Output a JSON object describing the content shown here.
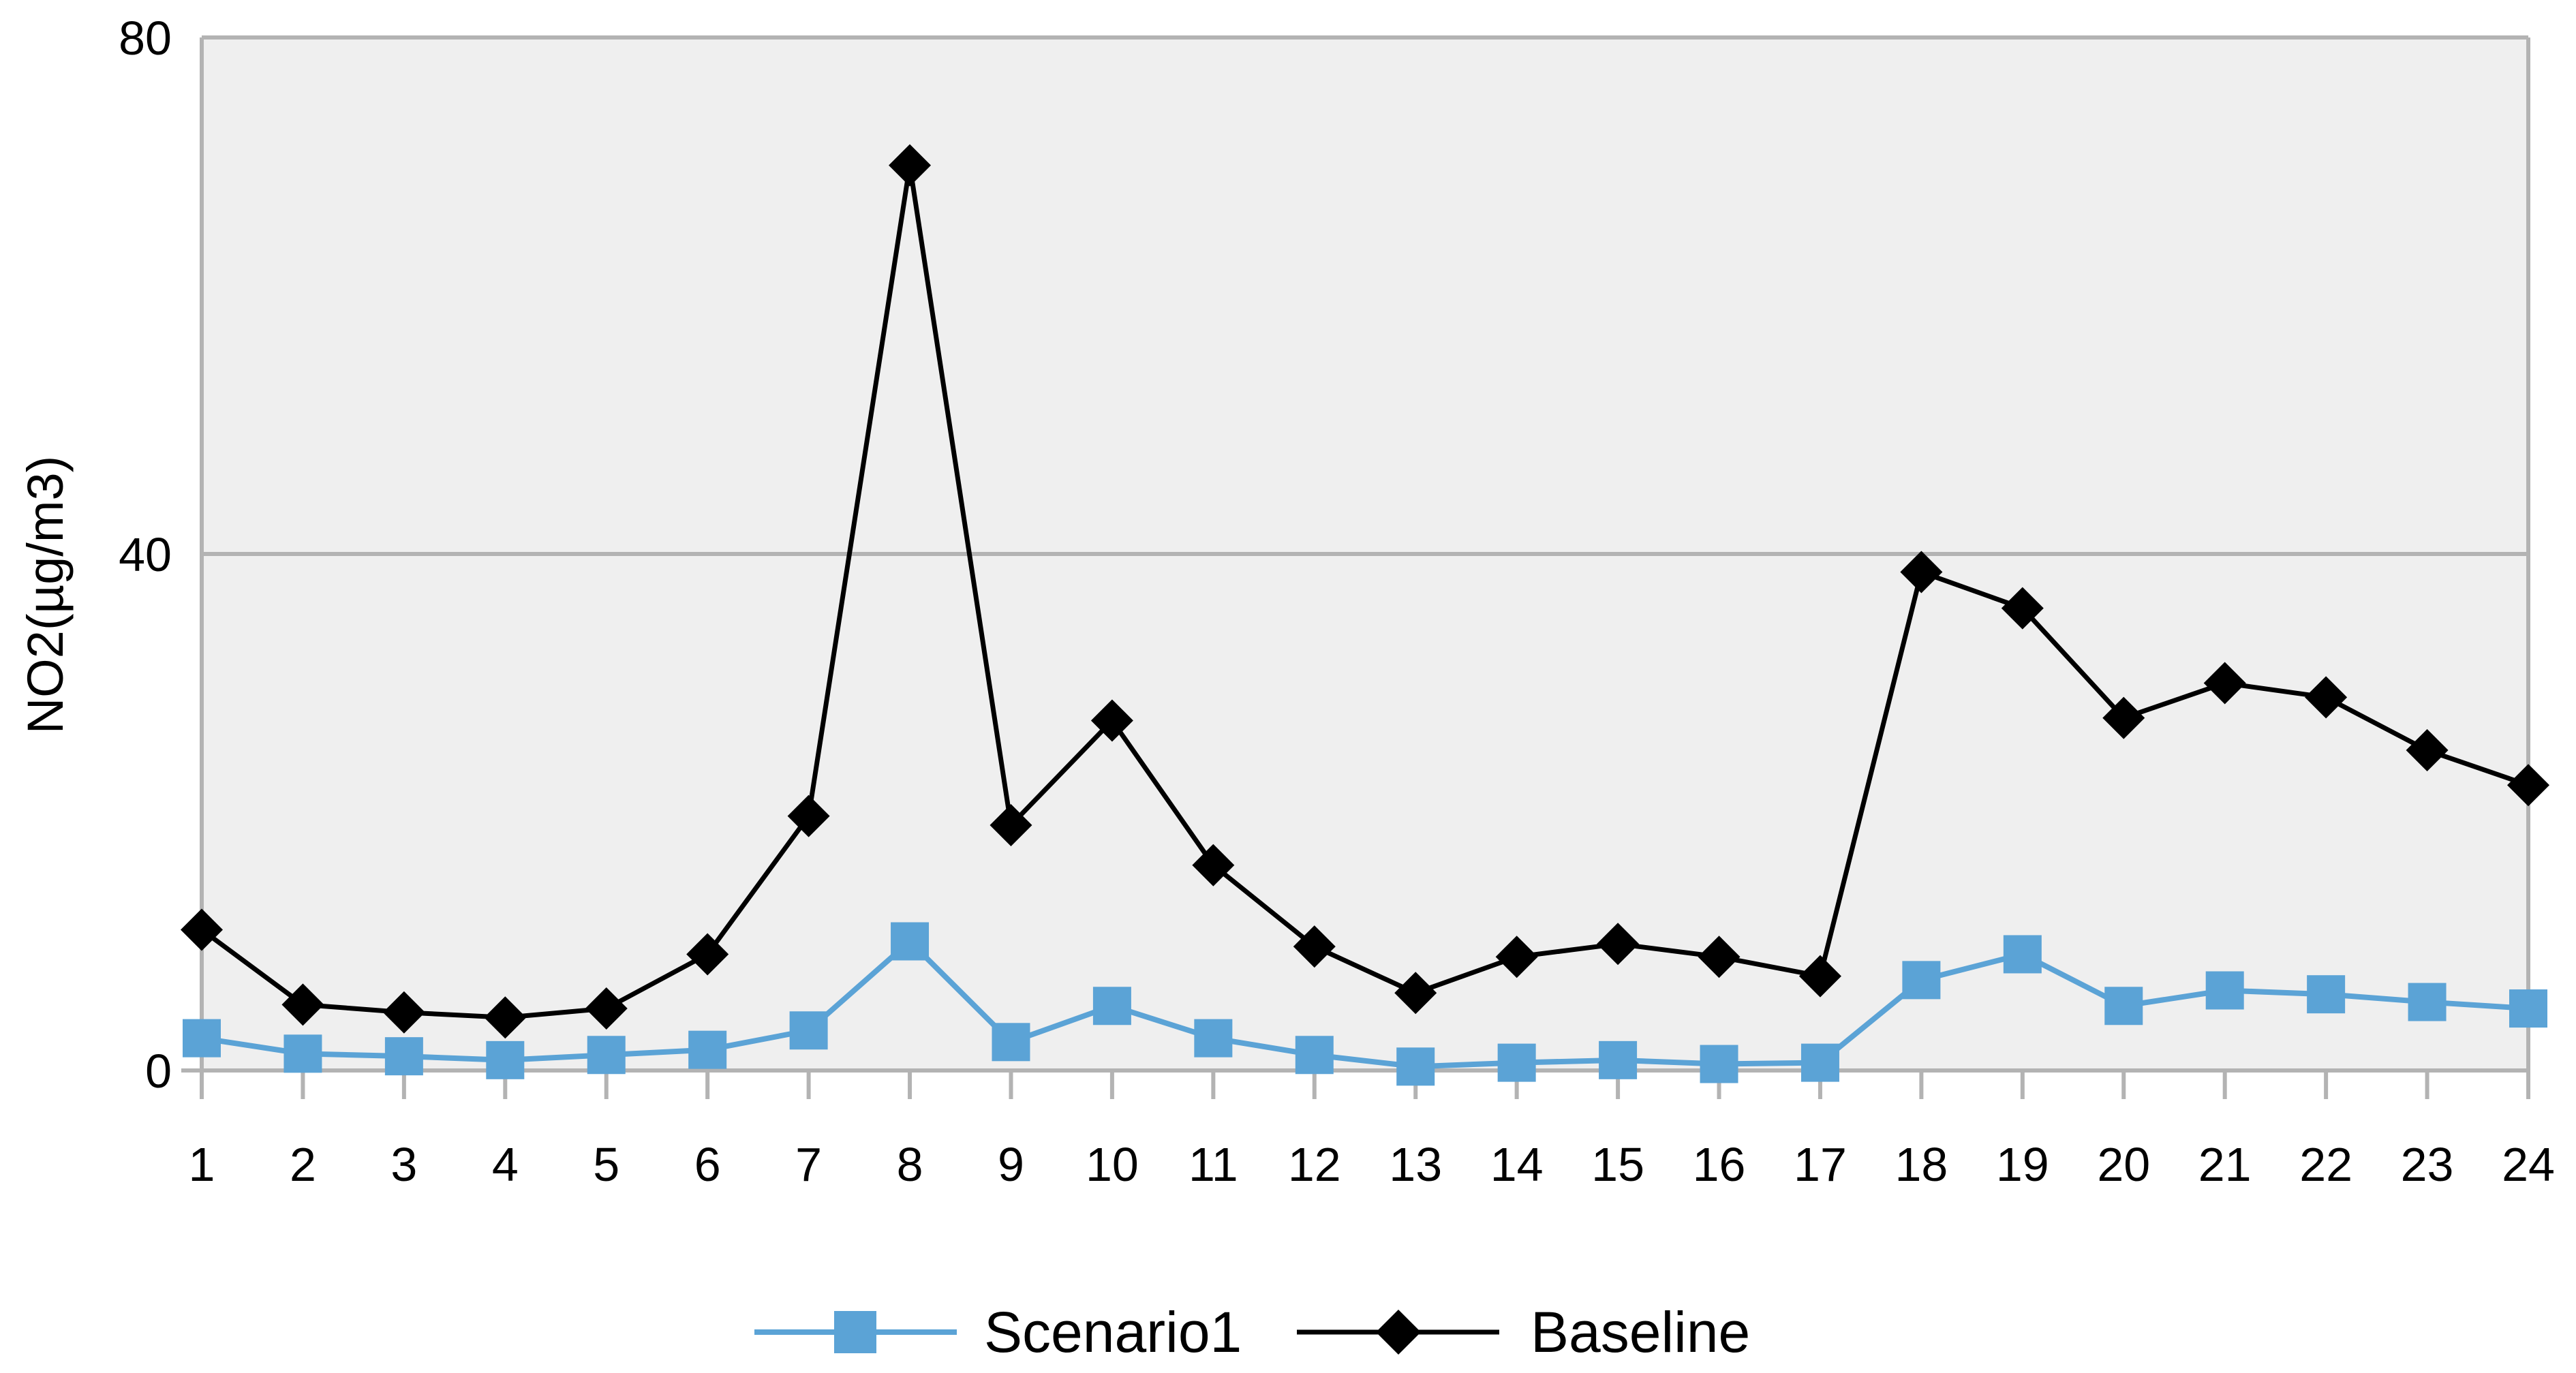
{
  "chart_data": {
    "type": "line",
    "title": "",
    "xlabel": "",
    "ylabel": "NO2(µg/m3)",
    "ylim": [
      0,
      80
    ],
    "y_ticks": [
      0,
      40,
      80
    ],
    "x": [
      "1",
      "2",
      "3",
      "4",
      "5",
      "6",
      "7",
      "8",
      "9",
      "10",
      "11",
      "12",
      "13",
      "14",
      "15",
      "16",
      "17",
      "18",
      "19",
      "20",
      "21",
      "22",
      "23",
      "24"
    ],
    "grid": "horizontal",
    "legend": "bottom-center",
    "plot_background": "#efefef",
    "series": [
      {
        "name": "Scenario1",
        "color": "#5ba3d6",
        "marker": "square",
        "values": [
          2.5,
          1.3,
          1.1,
          0.8,
          1.2,
          1.6,
          3.1,
          10.0,
          2.2,
          5.0,
          2.5,
          1.2,
          0.3,
          0.6,
          0.8,
          0.5,
          0.6,
          7.0,
          9.0,
          5.0,
          6.2,
          5.9,
          5.3,
          4.8
        ]
      },
      {
        "name": "Baseline",
        "color": "#000000",
        "marker": "diamond",
        "values": [
          10.9,
          5.1,
          4.5,
          4.1,
          4.8,
          9.0,
          19.7,
          70.1,
          19.0,
          27.1,
          15.9,
          9.6,
          6.0,
          8.8,
          9.8,
          8.8,
          7.3,
          38.6,
          35.8,
          27.3,
          30.0,
          28.9,
          24.8,
          22.1
        ]
      }
    ]
  }
}
